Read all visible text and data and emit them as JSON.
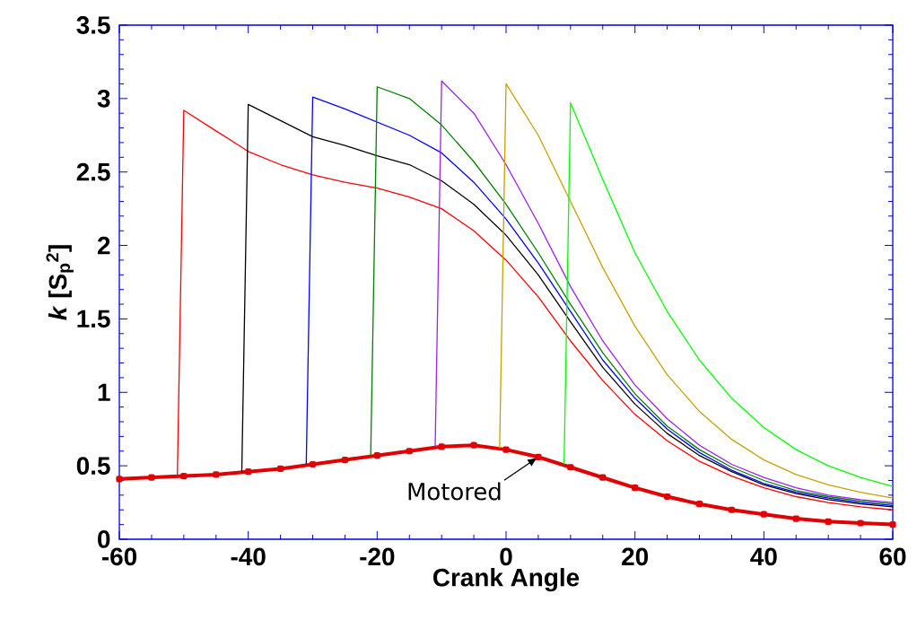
{
  "chart_data": {
    "type": "line",
    "xlabel": "Crank Angle",
    "ylabel": "*k* [S$_{p}$$^{2}$]",
    "xlim": [
      -60,
      60
    ],
    "xticks": [
      -60,
      -40,
      -20,
      0,
      20,
      40,
      60
    ],
    "ylim": [
      0,
      3.5
    ],
    "yticks": [
      0,
      0.5,
      1,
      1.5,
      2,
      2.5,
      3,
      3.5
    ],
    "grid": false,
    "annotations": [
      {
        "text": "Motored",
        "x": 5,
        "y": 0.56
      }
    ],
    "series": [
      {
        "color": "#e00000",
        "marker": "square",
        "x": [
          -60,
          -55,
          -50,
          -45,
          -40,
          -35,
          -30,
          -25,
          -20,
          -15,
          -10,
          -5,
          0,
          5,
          10,
          15,
          20,
          25,
          30,
          35,
          40,
          45,
          50,
          55,
          60
        ],
        "values": [
          0.41,
          0.42,
          0.43,
          0.44,
          0.46,
          0.48,
          0.51,
          0.54,
          0.57,
          0.6,
          0.63,
          0.64,
          0.61,
          0.56,
          0.49,
          0.42,
          0.35,
          0.29,
          0.24,
          0.2,
          0.17,
          0.14,
          0.12,
          0.11,
          0.1
        ]
      },
      {
        "color": "#ff0000",
        "x": [
          -51,
          -50,
          -45,
          -40,
          -35,
          -30,
          -25,
          -20,
          -15,
          -10,
          -5,
          0,
          5,
          10,
          15,
          20,
          25,
          30,
          35,
          40,
          45,
          50,
          55,
          60
        ],
        "values": [
          0.43,
          2.92,
          2.78,
          2.64,
          2.55,
          2.48,
          2.43,
          2.39,
          2.33,
          2.25,
          2.1,
          1.9,
          1.65,
          1.35,
          1.08,
          0.85,
          0.67,
          0.53,
          0.43,
          0.35,
          0.29,
          0.25,
          0.22,
          0.2
        ]
      },
      {
        "color": "#000000",
        "x": [
          -41,
          -40,
          -35,
          -30,
          -25,
          -20,
          -15,
          -10,
          -5,
          0,
          5,
          10,
          15,
          20,
          25,
          30,
          35,
          40,
          45,
          50,
          55,
          60
        ],
        "values": [
          0.46,
          2.96,
          2.85,
          2.74,
          2.68,
          2.61,
          2.55,
          2.44,
          2.28,
          2.07,
          1.8,
          1.48,
          1.17,
          0.92,
          0.72,
          0.57,
          0.46,
          0.37,
          0.31,
          0.27,
          0.24,
          0.22
        ]
      },
      {
        "color": "#0000ff",
        "x": [
          -31,
          -30,
          -25,
          -20,
          -15,
          -10,
          -5,
          0,
          5,
          10,
          15,
          20,
          25,
          30,
          35,
          40,
          45,
          50,
          55,
          60
        ],
        "values": [
          0.51,
          3.01,
          2.93,
          2.84,
          2.75,
          2.63,
          2.43,
          2.18,
          1.88,
          1.55,
          1.22,
          0.96,
          0.75,
          0.59,
          0.47,
          0.38,
          0.32,
          0.28,
          0.25,
          0.23
        ]
      },
      {
        "color": "#008000",
        "x": [
          -21,
          -20,
          -15,
          -10,
          -5,
          0,
          5,
          10,
          15,
          20,
          25,
          30,
          35,
          40,
          45,
          50,
          55,
          60
        ],
        "values": [
          0.57,
          3.08,
          3.0,
          2.82,
          2.57,
          2.28,
          1.95,
          1.6,
          1.27,
          0.99,
          0.77,
          0.61,
          0.49,
          0.4,
          0.33,
          0.29,
          0.26,
          0.24
        ]
      },
      {
        "color": "#a020f0",
        "x": [
          -11,
          -10,
          -5,
          0,
          5,
          10,
          15,
          20,
          25,
          30,
          35,
          40,
          45,
          50,
          55,
          60
        ],
        "values": [
          0.63,
          3.12,
          2.9,
          2.55,
          2.15,
          1.72,
          1.35,
          1.05,
          0.82,
          0.64,
          0.51,
          0.42,
          0.35,
          0.3,
          0.27,
          0.25
        ]
      },
      {
        "color": "#c8a000",
        "x": [
          -1,
          0,
          5,
          10,
          15,
          20,
          25,
          30,
          35,
          40,
          45,
          50,
          55,
          60
        ],
        "values": [
          0.62,
          3.1,
          2.75,
          2.3,
          1.85,
          1.45,
          1.12,
          0.87,
          0.68,
          0.54,
          0.44,
          0.37,
          0.32,
          0.28
        ]
      },
      {
        "color": "#00ff00",
        "x": [
          9,
          10,
          15,
          20,
          25,
          30,
          35,
          40,
          45,
          50,
          55,
          60
        ],
        "values": [
          0.51,
          2.97,
          2.45,
          1.95,
          1.55,
          1.22,
          0.96,
          0.76,
          0.61,
          0.5,
          0.42,
          0.36
        ]
      }
    ]
  }
}
